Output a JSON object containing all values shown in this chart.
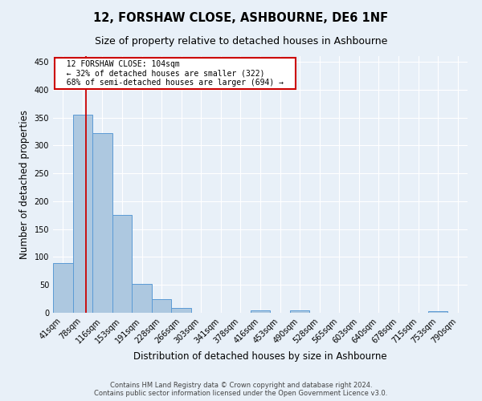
{
  "title": "12, FORSHAW CLOSE, ASHBOURNE, DE6 1NF",
  "subtitle": "Size of property relative to detached houses in Ashbourne",
  "xlabel": "Distribution of detached houses by size in Ashbourne",
  "ylabel": "Number of detached properties",
  "footer_line1": "Contains HM Land Registry data © Crown copyright and database right 2024.",
  "footer_line2": "Contains public sector information licensed under the Open Government Licence v3.0.",
  "annotation_line1": "12 FORSHAW CLOSE: 104sqm",
  "annotation_line2": "← 32% of detached houses are smaller (322)",
  "annotation_line3": "68% of semi-detached houses are larger (694) →",
  "bin_labels": [
    "41sqm",
    "78sqm",
    "116sqm",
    "153sqm",
    "191sqm",
    "228sqm",
    "266sqm",
    "303sqm",
    "341sqm",
    "378sqm",
    "416sqm",
    "453sqm",
    "490sqm",
    "528sqm",
    "565sqm",
    "603sqm",
    "640sqm",
    "678sqm",
    "715sqm",
    "753sqm",
    "790sqm"
  ],
  "bar_values": [
    89,
    355,
    322,
    176,
    52,
    25,
    8,
    0,
    0,
    0,
    4,
    0,
    5,
    0,
    0,
    0,
    0,
    0,
    0,
    3,
    0
  ],
  "bar_color": "#adc8e0",
  "bar_edge_color": "#5b9bd5",
  "ylim": [
    0,
    460
  ],
  "yticks": [
    0,
    50,
    100,
    150,
    200,
    250,
    300,
    350,
    400,
    450
  ],
  "bg_color": "#e8f0f8",
  "grid_color": "#ffffff",
  "annotation_box_color": "#ffffff",
  "annotation_box_edge": "#cc0000",
  "red_line_color": "#cc0000",
  "title_fontsize": 10.5,
  "subtitle_fontsize": 9,
  "axis_label_fontsize": 8.5,
  "tick_fontsize": 7,
  "annotation_fontsize": 7,
  "footer_fontsize": 6
}
